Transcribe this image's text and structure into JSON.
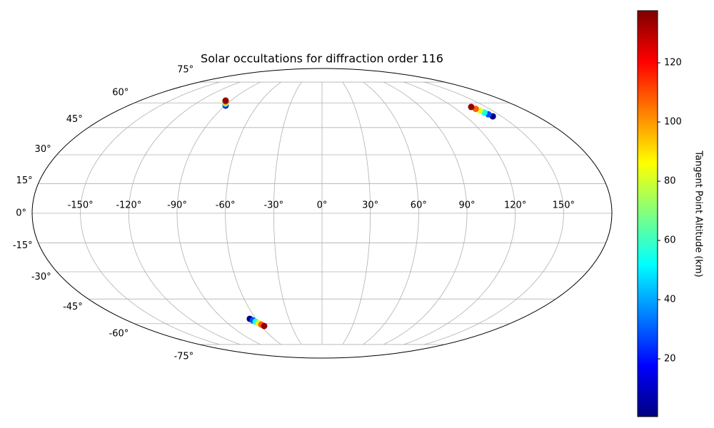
{
  "chart_data": {
    "type": "scatter",
    "title": "Solar occultations for diffraction order 116",
    "projection": "mollweide",
    "colormap": "jet",
    "grid": true,
    "colorbar_label": "Tangent Point Altitude (km)",
    "lon": [
      -89.6,
      -90.7,
      -91.9,
      -93.0,
      -94.2,
      -95.3,
      142.8,
      141.5,
      140.3,
      139.0,
      137.8,
      136.5,
      -65.5,
      -63.8,
      -62.2,
      -60.5,
      -58.9,
      -57.2
    ],
    "lat": [
      58.3,
      58.9,
      59.6,
      60.2,
      60.9,
      61.5,
      51.6,
      52.8,
      53.9,
      55.1,
      56.2,
      57.4,
      -56.9,
      -57.8,
      -58.7,
      -59.7,
      -60.6,
      -61.5
    ],
    "altitude": [
      2,
      28,
      55,
      82,
      108,
      135,
      2,
      28,
      55,
      82,
      108,
      135,
      2,
      28,
      55,
      82,
      108,
      135
    ],
    "xlim": [
      -180,
      180
    ],
    "ylim": [
      -90,
      90
    ],
    "xticks": [
      {
        "value": -150,
        "label": "-150°"
      },
      {
        "value": -120,
        "label": "-120°"
      },
      {
        "value": -90,
        "label": "-90°"
      },
      {
        "value": -60,
        "label": "-60°"
      },
      {
        "value": -30,
        "label": "-30°"
      },
      {
        "value": 0,
        "label": "0°"
      },
      {
        "value": 30,
        "label": "30°"
      },
      {
        "value": 60,
        "label": "60°"
      },
      {
        "value": 90,
        "label": "90°"
      },
      {
        "value": 120,
        "label": "120°"
      },
      {
        "value": 150,
        "label": "150°"
      }
    ],
    "yticks": [
      {
        "value": -75,
        "label": "-75°"
      },
      {
        "value": -60,
        "label": "-60°"
      },
      {
        "value": -45,
        "label": "-45°"
      },
      {
        "value": -30,
        "label": "-30°"
      },
      {
        "value": -15,
        "label": "-15°"
      },
      {
        "value": 0,
        "label": "0°"
      },
      {
        "value": 15,
        "label": "15°"
      },
      {
        "value": 30,
        "label": "30°"
      },
      {
        "value": 45,
        "label": "45°"
      },
      {
        "value": 60,
        "label": "60°"
      },
      {
        "value": 75,
        "label": "75°"
      }
    ],
    "clim": [
      0.5,
      137.6
    ],
    "cticks": [
      20,
      40,
      60,
      80,
      100,
      120
    ]
  }
}
